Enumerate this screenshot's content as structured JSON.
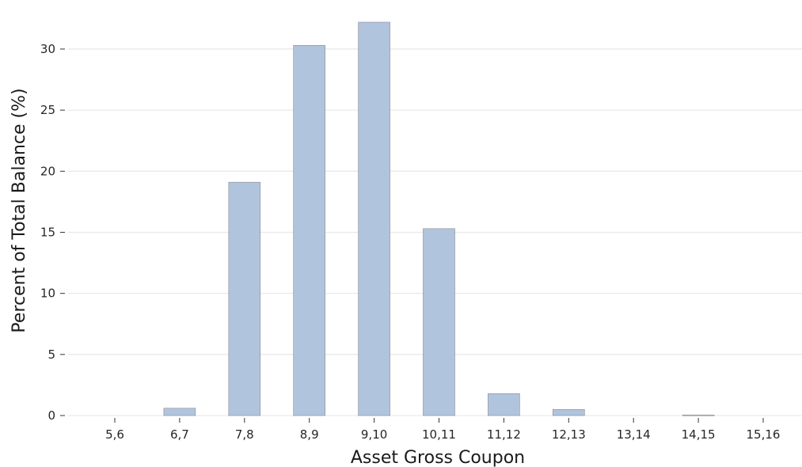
{
  "chart_data": {
    "type": "bar",
    "title": "",
    "xlabel": "Asset Gross Coupon",
    "ylabel": "Percent of Total Balance (%)",
    "categories": [
      "5,6",
      "6,7",
      "7,8",
      "8,9",
      "9,10",
      "10,11",
      "11,12",
      "12,13",
      "13,14",
      "14,15",
      "15,16"
    ],
    "values": [
      0,
      0.6,
      19.1,
      30.3,
      32.2,
      15.3,
      1.8,
      0.5,
      0,
      0.05,
      0
    ],
    "yticks": [
      0,
      5,
      10,
      15,
      20,
      25,
      30
    ],
    "ylim": [
      0,
      32.2
    ],
    "grid": "horizontal",
    "legend": "none",
    "bar_color": "#b0c4de"
  }
}
